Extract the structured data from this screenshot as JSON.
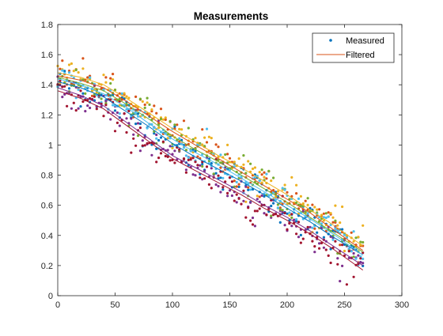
{
  "chart_data": {
    "type": "scatter",
    "title": "Measurements",
    "xlabel": "",
    "ylabel": "",
    "xlim": [
      0,
      300
    ],
    "ylim": [
      0,
      1.8
    ],
    "xticks": [
      0,
      50,
      100,
      150,
      200,
      250,
      300
    ],
    "yticks": [
      0,
      0.2,
      0.4,
      0.6,
      0.8,
      1,
      1.2,
      1.4,
      1.6,
      1.8
    ],
    "xtick_labels": [
      "0",
      "50",
      "100",
      "150",
      "200",
      "250",
      "300"
    ],
    "ytick_labels": [
      "0",
      "0.2",
      "0.4",
      "0.6",
      "0.8",
      "1",
      "1.2",
      "1.4",
      "1.6",
      "1.8"
    ],
    "grid": false,
    "legend": {
      "position": "top-right",
      "entries": [
        {
          "label": "Measured",
          "marker": "dot"
        },
        {
          "label": "Filtered",
          "marker": "line"
        }
      ]
    },
    "colors": [
      "#0072BD",
      "#D95319",
      "#EDB120",
      "#7E2F8E",
      "#77AC30",
      "#4DBEEE",
      "#A2142F"
    ],
    "series": [
      {
        "color_index": 0,
        "x": [
          0,
          20,
          40,
          60,
          80,
          100,
          120,
          140,
          160,
          180,
          200,
          220,
          240,
          266
        ],
        "filtered": [
          1.42,
          1.38,
          1.32,
          1.22,
          1.12,
          1.01,
          0.92,
          0.84,
          0.76,
          0.67,
          0.58,
          0.49,
          0.39,
          0.27
        ]
      },
      {
        "color_index": 1,
        "x": [
          0,
          20,
          40,
          60,
          80,
          100,
          120,
          140,
          160,
          180,
          200,
          220,
          240,
          266
        ],
        "filtered": [
          1.46,
          1.43,
          1.38,
          1.29,
          1.19,
          1.09,
          1.0,
          0.91,
          0.82,
          0.73,
          0.64,
          0.55,
          0.44,
          0.3
        ]
      },
      {
        "color_index": 2,
        "x": [
          0,
          20,
          40,
          60,
          80,
          100,
          120,
          140,
          160,
          180,
          200,
          220,
          240,
          266
        ],
        "filtered": [
          1.48,
          1.45,
          1.4,
          1.31,
          1.21,
          1.11,
          1.02,
          0.93,
          0.85,
          0.76,
          0.67,
          0.57,
          0.47,
          0.33
        ]
      },
      {
        "color_index": 3,
        "x": [
          0,
          20,
          40,
          60,
          80,
          100,
          120,
          140,
          160,
          180,
          200,
          220,
          240,
          266
        ],
        "filtered": [
          1.38,
          1.33,
          1.26,
          1.15,
          1.04,
          0.93,
          0.85,
          0.77,
          0.69,
          0.6,
          0.52,
          0.43,
          0.33,
          0.2
        ]
      },
      {
        "color_index": 4,
        "x": [
          0,
          20,
          40,
          60,
          80,
          100,
          120,
          140,
          160,
          180,
          200,
          220,
          240,
          266
        ],
        "filtered": [
          1.45,
          1.41,
          1.36,
          1.27,
          1.17,
          1.06,
          0.97,
          0.89,
          0.8,
          0.71,
          0.62,
          0.52,
          0.42,
          0.29
        ]
      },
      {
        "color_index": 5,
        "x": [
          0,
          20,
          40,
          60,
          80,
          100,
          120,
          140,
          160,
          180,
          200,
          220,
          240,
          266
        ],
        "filtered": [
          1.44,
          1.4,
          1.34,
          1.25,
          1.14,
          1.04,
          0.95,
          0.87,
          0.78,
          0.69,
          0.6,
          0.51,
          0.41,
          0.27
        ]
      },
      {
        "color_index": 6,
        "x": [
          0,
          20,
          40,
          60,
          80,
          100,
          120,
          140,
          160,
          180,
          200,
          220,
          240,
          266
        ],
        "filtered": [
          1.36,
          1.31,
          1.24,
          1.13,
          1.02,
          0.91,
          0.83,
          0.75,
          0.67,
          0.58,
          0.5,
          0.41,
          0.31,
          0.17
        ]
      }
    ],
    "measured_noise_sd": 0.06,
    "measured_step": 2
  }
}
